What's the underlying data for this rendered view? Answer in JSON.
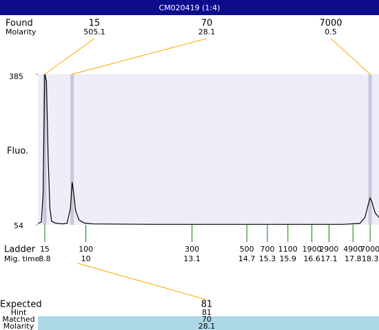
{
  "title": "CM020419 (1:4)",
  "labels": {
    "found": "Found",
    "found_molarity": "Molarity",
    "fluo": "Fluo.",
    "ladder": "Ladder",
    "mig_time": "Mig. time",
    "expected": "Expected",
    "hint": "Hint",
    "matched": "Matched",
    "matched_molarity": "Molarity"
  },
  "chart_data": {
    "type": "electropherogram",
    "xlim": [
      8.6,
      18.56
    ],
    "ylim": [
      54,
      385
    ],
    "yticks": [
      54,
      385
    ],
    "found": [
      {
        "size": 15,
        "molarity": 505.1,
        "time": 8.8
      },
      {
        "size": 70,
        "molarity": 28.1,
        "time": 9.6
      },
      {
        "size": 7000,
        "molarity": 0.5,
        "time": 18.3
      }
    ],
    "ladder": {
      "sizes": [
        15,
        100,
        300,
        500,
        700,
        1100,
        1900,
        2900,
        4900,
        7000
      ],
      "times": [
        8.8,
        10,
        13.1,
        14.7,
        15.3,
        15.9,
        16.6,
        17.1,
        17.8,
        18.3
      ]
    },
    "trace": {
      "x": [
        8.6,
        8.7,
        8.75,
        8.8,
        8.85,
        8.9,
        8.95,
        9.0,
        9.1,
        9.3,
        9.45,
        9.55,
        9.6,
        9.65,
        9.7,
        9.8,
        9.95,
        10.2,
        12,
        15,
        17.5,
        18.0,
        18.15,
        18.25,
        18.3,
        18.35,
        18.45,
        18.56
      ],
      "values": [
        57,
        60,
        120,
        385,
        370,
        200,
        90,
        62,
        58,
        56,
        57,
        90,
        148,
        120,
        85,
        65,
        58,
        56,
        55,
        55,
        55,
        57,
        70,
        100,
        113,
        105,
        80,
        70
      ],
      "color": "#000000"
    },
    "expected": {
      "size": 81,
      "hint": 81,
      "matched": 70,
      "molarity": 28.1
    },
    "tick_color": "#008000",
    "connector_color": "#ffa500",
    "band_color": "#c8c8dc",
    "plot_color": "#eeeef8"
  }
}
